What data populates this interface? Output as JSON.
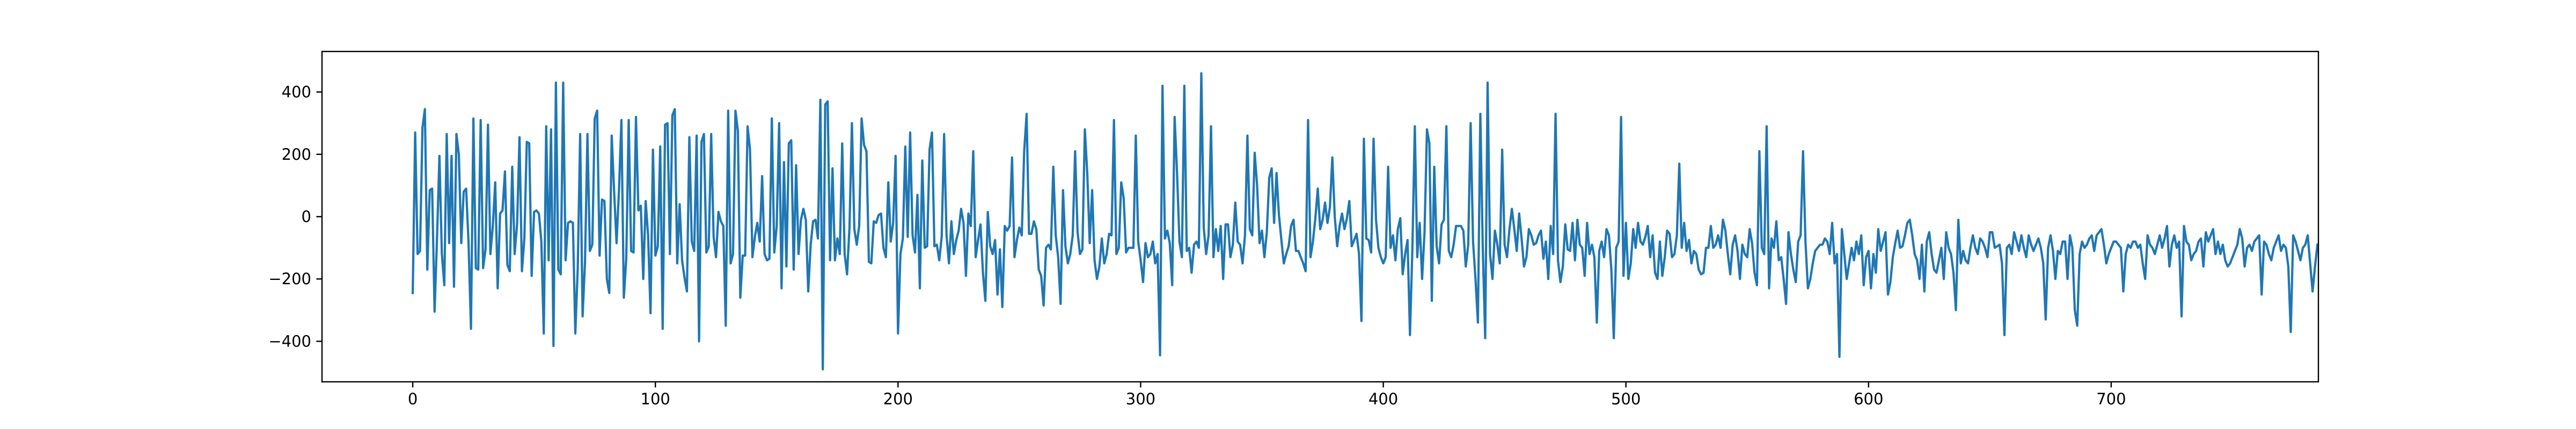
{
  "chart_data": {
    "type": "line",
    "title": "",
    "xlabel": "",
    "ylabel": "",
    "xlim": [
      -37.4,
      785.4
    ],
    "ylim": [
      -530,
      530
    ],
    "xticks": [
      0,
      100,
      200,
      300,
      400,
      500,
      600,
      700
    ],
    "yticks": [
      -400,
      -200,
      0,
      200,
      400
    ],
    "grid": false,
    "legend": "none",
    "line_color": "#1f77b4",
    "series": [
      {
        "name": "",
        "x_start": 0,
        "x_step": 1,
        "values": [
          -245,
          270,
          -120,
          -110,
          285,
          345,
          -170,
          85,
          90,
          -305,
          -70,
          195,
          -120,
          -220,
          265,
          -85,
          195,
          -225,
          265,
          200,
          -85,
          80,
          90,
          -85,
          -360,
          315,
          -165,
          -170,
          310,
          -165,
          -105,
          295,
          -120,
          -30,
          110,
          -230,
          10,
          20,
          145,
          -155,
          -175,
          160,
          -120,
          -25,
          255,
          -175,
          -70,
          240,
          235,
          -190,
          15,
          20,
          10,
          -80,
          -375,
          290,
          -140,
          280,
          -415,
          430,
          -170,
          -185,
          430,
          -140,
          -20,
          -15,
          -20,
          -375,
          -165,
          265,
          -320,
          -145,
          265,
          -110,
          -90,
          315,
          340,
          -125,
          55,
          50,
          -200,
          -245,
          260,
          80,
          -85,
          85,
          310,
          -260,
          -135,
          310,
          -110,
          -115,
          320,
          20,
          35,
          -200,
          50,
          -60,
          -310,
          215,
          -125,
          -95,
          225,
          -360,
          295,
          300,
          -120,
          325,
          345,
          -150,
          40,
          -140,
          -195,
          -240,
          255,
          -80,
          -110,
          260,
          -400,
          240,
          265,
          -115,
          -95,
          265,
          -65,
          -130,
          15,
          -15,
          -30,
          -350,
          340,
          -150,
          -120,
          340,
          275,
          -260,
          -125,
          -125,
          290,
          215,
          -130,
          -65,
          -20,
          -80,
          130,
          -120,
          -140,
          -135,
          315,
          -115,
          -30,
          300,
          -230,
          175,
          -160,
          235,
          245,
          -170,
          165,
          -120,
          -10,
          25,
          -10,
          -240,
          -90,
          -15,
          -10,
          -70,
          375,
          -490,
          360,
          370,
          -140,
          155,
          -140,
          -70,
          -120,
          235,
          -120,
          -185,
          -35,
          300,
          -40,
          -90,
          -30,
          315,
          230,
          210,
          -145,
          -150,
          -15,
          -20,
          5,
          10,
          -100,
          -130,
          110,
          -80,
          -20,
          195,
          -375,
          -120,
          -70,
          225,
          -65,
          270,
          -60,
          -115,
          70,
          -230,
          180,
          -100,
          -95,
          215,
          270,
          -95,
          -90,
          -140,
          -65,
          265,
          -60,
          -150,
          -15,
          -120,
          -75,
          -45,
          25,
          -20,
          -190,
          10,
          -30,
          210,
          -130,
          -75,
          -25,
          -180,
          -270,
          15,
          -95,
          -120,
          -75,
          -250,
          -105,
          -290,
          -30,
          -45,
          -30,
          190,
          -130,
          -75,
          -35,
          -60,
          210,
          330,
          -55,
          -55,
          -15,
          -40,
          -170,
          -190,
          -285,
          -100,
          -90,
          -105,
          160,
          -60,
          -130,
          -280,
          85,
          -95,
          -150,
          -120,
          -60,
          210,
          -50,
          -120,
          -105,
          280,
          140,
          -85,
          85,
          -140,
          -200,
          -160,
          -70,
          -150,
          -120,
          -55,
          -60,
          310,
          -120,
          -100,
          110,
          60,
          -115,
          -100,
          -100,
          -100,
          260,
          -80,
          -140,
          -210,
          -85,
          -130,
          -120,
          -80,
          -150,
          -120,
          -445,
          420,
          -70,
          -45,
          -85,
          -220,
          320,
          140,
          -80,
          -130,
          420,
          -110,
          -100,
          -180,
          -90,
          -80,
          -100,
          460,
          -35,
          -120,
          -60,
          290,
          -130,
          -40,
          -110,
          -30,
          -200,
          -25,
          -25,
          -130,
          -90,
          45,
          -80,
          -90,
          -150,
          -60,
          260,
          -40,
          -60,
          205,
          100,
          -85,
          -45,
          -130,
          -50,
          125,
          155,
          -20,
          140,
          5,
          -75,
          -150,
          -120,
          -95,
          -30,
          -10,
          -110,
          -110,
          -130,
          -150,
          -175,
          310,
          -130,
          -80,
          -5,
          90,
          -40,
          -10,
          45,
          -20,
          30,
          190,
          0,
          -95,
          -30,
          10,
          -40,
          -5,
          50,
          -95,
          -75,
          -55,
          -120,
          -335,
          250,
          -70,
          -75,
          -115,
          250,
          -10,
          -100,
          -130,
          -150,
          -130,
          160,
          -100,
          -60,
          -140,
          -40,
          -5,
          -185,
          -120,
          -75,
          -380,
          -100,
          290,
          -130,
          -20,
          -200,
          -50,
          280,
          235,
          -270,
          160,
          -95,
          -150,
          -25,
          -10,
          290,
          -110,
          -130,
          -90,
          -30,
          -30,
          -30,
          -45,
          -160,
          -90,
          300,
          -80,
          -200,
          -340,
          330,
          -100,
          -390,
          430,
          -120,
          -200,
          -45,
          -90,
          -150,
          215,
          -90,
          -130,
          -40,
          25,
          -40,
          -110,
          10,
          -70,
          -160,
          -130,
          -40,
          -60,
          -90,
          -85,
          -60,
          -45,
          -135,
          -80,
          -200,
          -30,
          -120,
          330,
          -140,
          -210,
          -160,
          -25,
          -105,
          -110,
          -20,
          -140,
          -10,
          -90,
          -100,
          -190,
          -20,
          -120,
          -90,
          -130,
          -340,
          -110,
          -80,
          -130,
          -40,
          -60,
          -170,
          -390,
          -100,
          -80,
          320,
          -190,
          -20,
          -200,
          -150,
          -40,
          -100,
          -20,
          -80,
          -90,
          -65,
          -30,
          -130,
          -60,
          -180,
          -200,
          -80,
          -190,
          -130,
          -45,
          -55,
          -130,
          -120,
          -60,
          170,
          -100,
          -20,
          -110,
          -75,
          -150,
          -110,
          -120,
          -170,
          -185,
          -180,
          -100,
          -100,
          -30,
          -100,
          -90,
          -60,
          -100,
          -10,
          -45,
          -120,
          -185,
          -90,
          -60,
          -110,
          -200,
          -90,
          -120,
          -130,
          -40,
          -85,
          -180,
          -220,
          210,
          -100,
          -120,
          290,
          -230,
          -70,
          -100,
          -15,
          -140,
          -130,
          -200,
          -280,
          -50,
          -120,
          -170,
          -210,
          -80,
          -60,
          210,
          -80,
          -230,
          -200,
          -150,
          -110,
          -100,
          -90,
          -90,
          -70,
          -80,
          -120,
          -20,
          -150,
          -120,
          -450,
          -40,
          -120,
          -200,
          -150,
          -100,
          -140,
          -80,
          -120,
          -60,
          -220,
          -130,
          -110,
          -230,
          -120,
          -180,
          -40,
          -110,
          -80,
          -50,
          -250,
          -210,
          -130,
          -85,
          -45,
          -100,
          -95,
          -60,
          -20,
          -10,
          -60,
          -120,
          -140,
          -200,
          -90,
          -240,
          -80,
          -50,
          -120,
          -170,
          -180,
          -140,
          -100,
          -200,
          -50,
          -100,
          -120,
          -180,
          -300,
          -10,
          -150,
          -110,
          -140,
          -150,
          -100,
          -60,
          -100,
          -120,
          -70,
          -80,
          -100,
          -130,
          -50,
          -50,
          -100,
          -95,
          -90,
          -150,
          -380,
          -100,
          -90,
          -120,
          -50,
          -80,
          -110,
          -60,
          -100,
          -130,
          -60,
          -90,
          -110,
          -90,
          -70,
          -100,
          -150,
          -330,
          -100,
          -60,
          -110,
          -200,
          -110,
          -120,
          -80,
          -80,
          -200,
          -60,
          -100,
          -300,
          -350,
          -120,
          -80,
          -100,
          -90,
          -70,
          -60,
          -110,
          -60,
          -50,
          -40,
          -90,
          -150,
          -120,
          -100,
          -80,
          -80,
          -90,
          -100,
          -240,
          -120,
          -90,
          -100,
          -80,
          -80,
          -100,
          -90,
          -150,
          -200,
          -60,
          -90,
          -100,
          -120,
          -90,
          -60,
          -100,
          -70,
          -30,
          -160,
          -90,
          -60,
          -100,
          -80,
          -320,
          -30,
          -80,
          -90,
          -140,
          -120,
          -110,
          -80,
          -70,
          -160,
          -50,
          -80,
          -60,
          -40,
          -120,
          -80,
          -120,
          -90,
          -140,
          -160,
          -150,
          -130,
          -110,
          -90,
          -40,
          -70,
          -160,
          -100,
          -90,
          -110,
          -80,
          -70,
          -60,
          -250,
          -80,
          -90,
          -120,
          -140,
          -100,
          -80,
          -60,
          -110,
          -90,
          -100,
          -160,
          -370,
          -60,
          -80,
          -110,
          -140,
          -100,
          -90,
          -60,
          -150,
          -240,
          -160,
          -90
        ]
      }
    ]
  }
}
